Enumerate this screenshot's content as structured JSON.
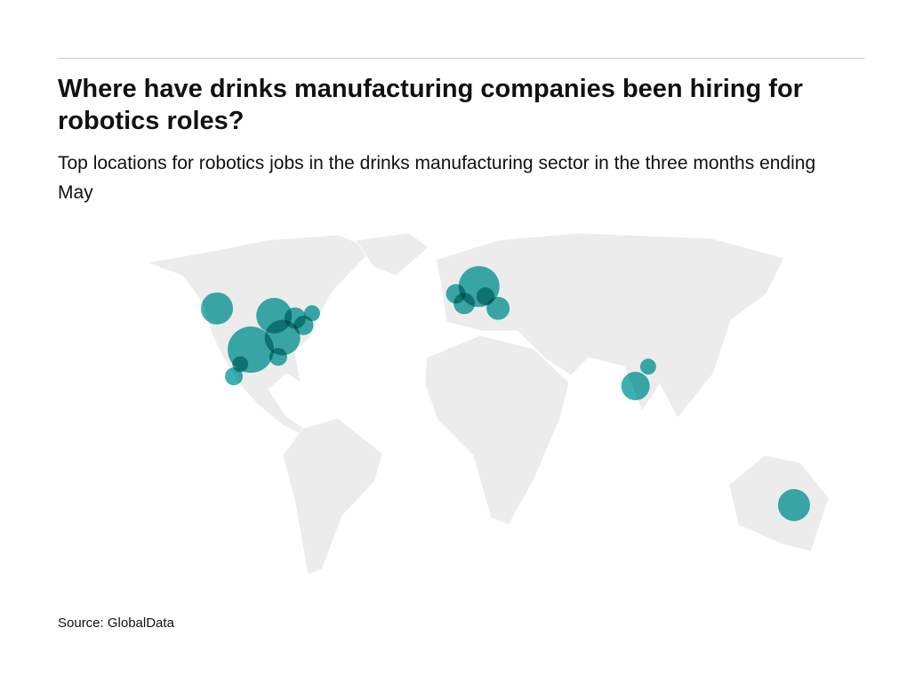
{
  "chart_data": {
    "type": "bubble-map",
    "title": "Where have drinks manufacturing companies been hiring for robotics roles?",
    "subtitle": "Top locations for robotics jobs in the drinks manufacturing sector in the three months ending May",
    "source": "Source: GlobalData",
    "color": "#1aa3a3",
    "lon": [
      -122,
      -95,
      -106,
      -91,
      -85,
      -77,
      -81,
      -93,
      -111,
      -114,
      2,
      -9,
      -5,
      5,
      11,
      82,
      76,
      151
    ],
    "lat": [
      47,
      44,
      30,
      35,
      43,
      45,
      40,
      27,
      24,
      19,
      56,
      53,
      49,
      52,
      47,
      23,
      15,
      -34
    ],
    "sizes": [
      81,
      100,
      169,
      100,
      36,
      20,
      30,
      25,
      20,
      25,
      132,
      30,
      36,
      25,
      42,
      20,
      64,
      81
    ]
  }
}
